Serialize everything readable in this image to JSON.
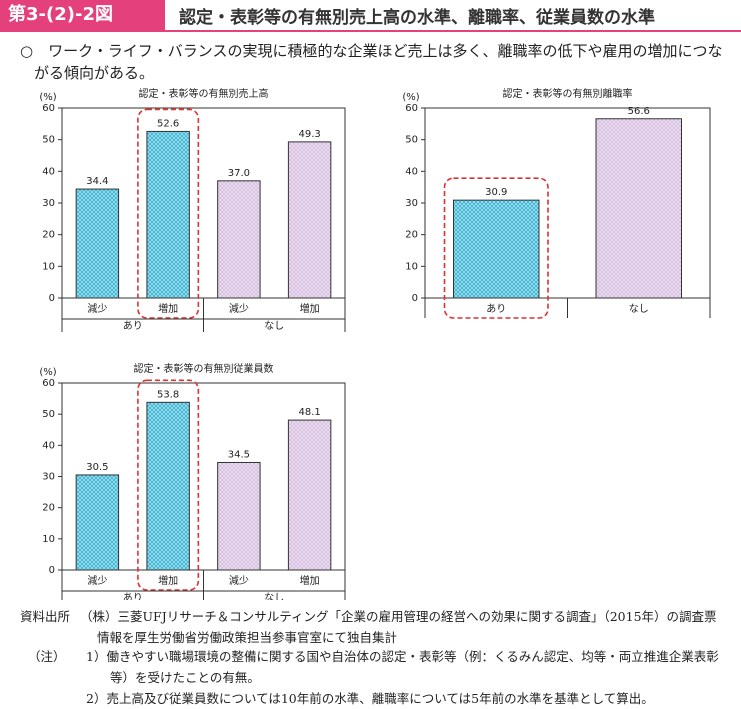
{
  "header": {
    "figure_label": "第3-(2)-2図",
    "title": "認定・表彰等の有無別売上高の水準、離職率、従業員数の水準"
  },
  "summary": "○　ワーク・ライフ・バランスの実現に積極的な企業ほど売上は多く、離職率の低下や雇用の増加につながる傾向がある。",
  "chart_data": [
    {
      "type": "bar",
      "title": "認定・表彰等の有無別売上高",
      "y_unit": "(%)",
      "ylim": [
        0,
        60
      ],
      "yticks": [
        0,
        10,
        20,
        30,
        40,
        50,
        60
      ],
      "groups": [
        {
          "name": "あり",
          "color": "#3cb6d6",
          "categories": [
            "減少",
            "増加"
          ],
          "values": [
            34.4,
            52.6
          ],
          "highlight": [
            false,
            true
          ]
        },
        {
          "name": "なし",
          "color": "#d6bde0",
          "categories": [
            "減少",
            "増加"
          ],
          "values": [
            37.0,
            49.3
          ],
          "value_labels": [
            "37.0",
            "49.3"
          ],
          "highlight": [
            false,
            false
          ]
        }
      ]
    },
    {
      "type": "bar",
      "title": "認定・表彰等の有無別離職率",
      "y_unit": "(%)",
      "ylim": [
        0,
        60
      ],
      "yticks": [
        0,
        10,
        20,
        30,
        40,
        50,
        60
      ],
      "categories": [
        "あり",
        "なし"
      ],
      "values": [
        30.9,
        56.6
      ],
      "colors": [
        "#3cb6d6",
        "#d6bde0"
      ],
      "highlight": [
        true,
        false
      ]
    },
    {
      "type": "bar",
      "title": "認定・表彰等の有無別従業員数",
      "y_unit": "(%)",
      "ylim": [
        0,
        60
      ],
      "yticks": [
        0,
        10,
        20,
        30,
        40,
        50,
        60
      ],
      "groups": [
        {
          "name": "あり",
          "color": "#3cb6d6",
          "categories": [
            "減少",
            "増加"
          ],
          "values": [
            30.5,
            53.8
          ],
          "highlight": [
            false,
            true
          ]
        },
        {
          "name": "なし",
          "color": "#d6bde0",
          "categories": [
            "減少",
            "増加"
          ],
          "values": [
            34.5,
            48.1
          ],
          "highlight": [
            false,
            false
          ]
        }
      ]
    }
  ],
  "source": {
    "label": "資料出所",
    "text": "（株）三菱UFJリサーチ＆コンサルティング「企業の雇用管理の経営への効果に関する調査」（2015年）の調査票情報を厚生労働省労働政策担当参事官室にて独自集計"
  },
  "notes": {
    "label": "（注）",
    "items": [
      "1）働きやすい職場環境の整備に関する国や自治体の認定・表彰等（例：くるみん認定、均等・両立推進企業表彰等）を受けたことの有無。",
      "2）売上高及び従業員数については10年前の水準、離職率については5年前の水準を基準として算出。"
    ]
  }
}
